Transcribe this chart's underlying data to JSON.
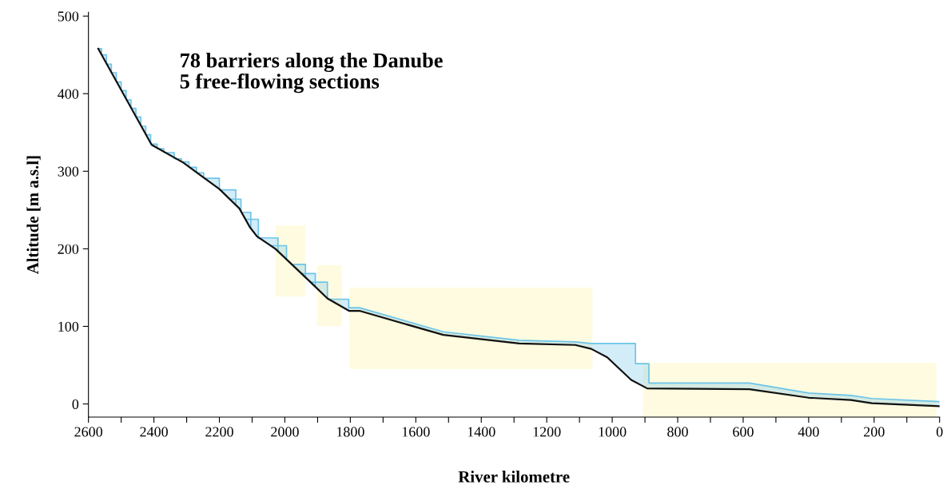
{
  "chart_data": {
    "type": "line",
    "xlabel": "River kilometre",
    "ylabel": "Altitude [m a.s.l]",
    "annotations": [
      "78 barriers along the Danube\n5 free-flowing sections"
    ],
    "series": [
      {
        "color": "#6cc4e8",
        "upper": [
          458,
          458,
          451,
          450,
          450,
          439,
          438,
          438,
          428,
          427,
          427,
          416,
          415,
          415,
          405,
          404,
          404,
          393,
          392,
          392,
          382,
          381,
          381,
          371,
          370,
          370,
          359,
          358,
          358,
          348,
          347,
          347,
          336,
          335,
          335,
          330,
          329,
          329,
          325,
          324,
          324,
          317,
          316,
          316,
          313,
          312,
          312,
          306,
          305,
          305,
          299,
          298,
          298,
          292,
          291,
          291,
          277,
          276,
          276,
          257,
          264,
          264,
          248,
          247,
          247,
          226,
          238,
          238,
          215,
          214,
          214,
          197,
          204,
          204,
          186,
          180,
          180,
          163,
          168,
          168,
          151,
          157,
          157,
          136,
          135,
          135,
          124,
          124,
          93,
          82,
          80,
          78,
          78,
          78,
          78,
          52,
          52,
          27,
          27,
          14,
          11,
          7,
          3
        ],
        "x": [
          2570,
          2560,
          2560,
          2558,
          2545,
          2545,
          2543,
          2530,
          2530,
          2528,
          2515,
          2515,
          2513,
          2500,
          2500,
          2498,
          2485,
          2485,
          2483,
          2470,
          2470,
          2468,
          2455,
          2455,
          2453,
          2440,
          2440,
          2438,
          2425,
          2425,
          2423,
          2410,
          2410,
          2408,
          2390,
          2390,
          2388,
          2370,
          2370,
          2368,
          2338,
          2338,
          2336,
          2316,
          2316,
          2314,
          2293,
          2293,
          2291,
          2270,
          2270,
          2268,
          2248,
          2248,
          2246,
          2200,
          2200,
          2198,
          2150,
          2150,
          2168,
          2134,
          2134,
          2132,
          2104,
          2104,
          2120,
          2081,
          2081,
          2083,
          2021,
          2021,
          2043,
          1995,
          1995,
          1979,
          1937,
          1937,
          1949,
          1907,
          1907,
          1921,
          1870,
          1870,
          1866,
          1805,
          1805,
          1772,
          1516,
          1284,
          1113,
          1064,
          1015,
          942,
          929,
          929,
          888,
          888,
          581,
          400,
          271,
          207,
          0
        ],
        "values": [
          458,
          458,
          451,
          450,
          450,
          439,
          438,
          438,
          428,
          427,
          427,
          416,
          415,
          415,
          405,
          404,
          404,
          393,
          392,
          392,
          382,
          381,
          381,
          371,
          370,
          370,
          359,
          358,
          358,
          348,
          347,
          347,
          336,
          335,
          335,
          330,
          329,
          329,
          325,
          324,
          324,
          317,
          316,
          316,
          313,
          312,
          312,
          306,
          305,
          305,
          299,
          298,
          298,
          292,
          291,
          291,
          277,
          276,
          276,
          257,
          264,
          264,
          248,
          247,
          247,
          226,
          238,
          238,
          215,
          214,
          214,
          197,
          204,
          204,
          186,
          180,
          180,
          163,
          168,
          168,
          151,
          157,
          157,
          136,
          135,
          135,
          124,
          124,
          93,
          82,
          80,
          78,
          78,
          78,
          78,
          52,
          52,
          27,
          27,
          14,
          11,
          7,
          3
        ],
        "lower": [
          458,
          451,
          451,
          450,
          439,
          439,
          438,
          428,
          428,
          427,
          416,
          416,
          415,
          405,
          405,
          404,
          393,
          393,
          392,
          382,
          382,
          381,
          371,
          371,
          370,
          359,
          359,
          358,
          348,
          348,
          347,
          336,
          336,
          335,
          330,
          330,
          329,
          325,
          325,
          324,
          317,
          317,
          316,
          313,
          313,
          312,
          306,
          306,
          305,
          299,
          299,
          298,
          292,
          292,
          291,
          277,
          277,
          276,
          257,
          257,
          264,
          248,
          248,
          247,
          226,
          226,
          238,
          215,
          215,
          214,
          197,
          197,
          204,
          186,
          186,
          180,
          163,
          163,
          168,
          151,
          151,
          157,
          136,
          136,
          135,
          120,
          120,
          120,
          89,
          78,
          76,
          71,
          60,
          31,
          28,
          28,
          20,
          20,
          19,
          8,
          5,
          1,
          -3
        ]
      },
      {
        "color": "#111111",
        "x": [
          2570,
          2407,
          2310,
          2200,
          2139,
          2107,
          2085,
          2029,
          1919,
          1870,
          1804,
          1772,
          1516,
          1284,
          1113,
          1064,
          1015,
          942,
          893,
          581,
          400,
          271,
          207,
          0
        ],
        "values": [
          458,
          334,
          311,
          277,
          252,
          228,
          216,
          200,
          156,
          136,
          120,
          120,
          89,
          78,
          76,
          71,
          60,
          31,
          20,
          19,
          8,
          5,
          1,
          -3
        ]
      }
    ],
    "bands": [
      {
        "axis": "x",
        "from": 2029,
        "to": 1938,
        "color": "#fffbe0"
      },
      {
        "axis": "x",
        "from": 1902,
        "to": 1826,
        "color": "#fffbe0"
      },
      {
        "axis": "x",
        "from": 1804,
        "to": 1060,
        "color": "#fffbe0"
      },
      {
        "axis": "x",
        "from": 906,
        "to": 10,
        "color": "#fffbe0"
      }
    ],
    "xlim": [
      2600,
      0
    ],
    "xticks": [
      2600,
      {
        "value": 2500,
        "label": null
      },
      2400,
      {
        "value": 2300,
        "label": null
      },
      2200,
      {
        "value": 2100,
        "label": null
      },
      2000,
      {
        "value": 1900,
        "label": null
      },
      1800,
      {
        "value": 1700,
        "label": null
      },
      1600,
      {
        "value": 1500,
        "label": null
      },
      1400,
      {
        "value": 1300,
        "label": null
      },
      1200,
      {
        "value": 1100,
        "label": null
      },
      1000,
      {
        "value": 900,
        "label": null
      },
      800,
      {
        "value": 700,
        "label": null
      },
      600,
      {
        "value": 500,
        "label": null
      },
      400,
      {
        "value": 300,
        "label": null
      },
      200,
      {
        "value": 100,
        "label": null
      },
      0
    ],
    "ylim": [
      -17,
      505
    ],
    "yticks": [
      0,
      100,
      200,
      300,
      400,
      500
    ],
    "grid": false,
    "legend": false
  }
}
